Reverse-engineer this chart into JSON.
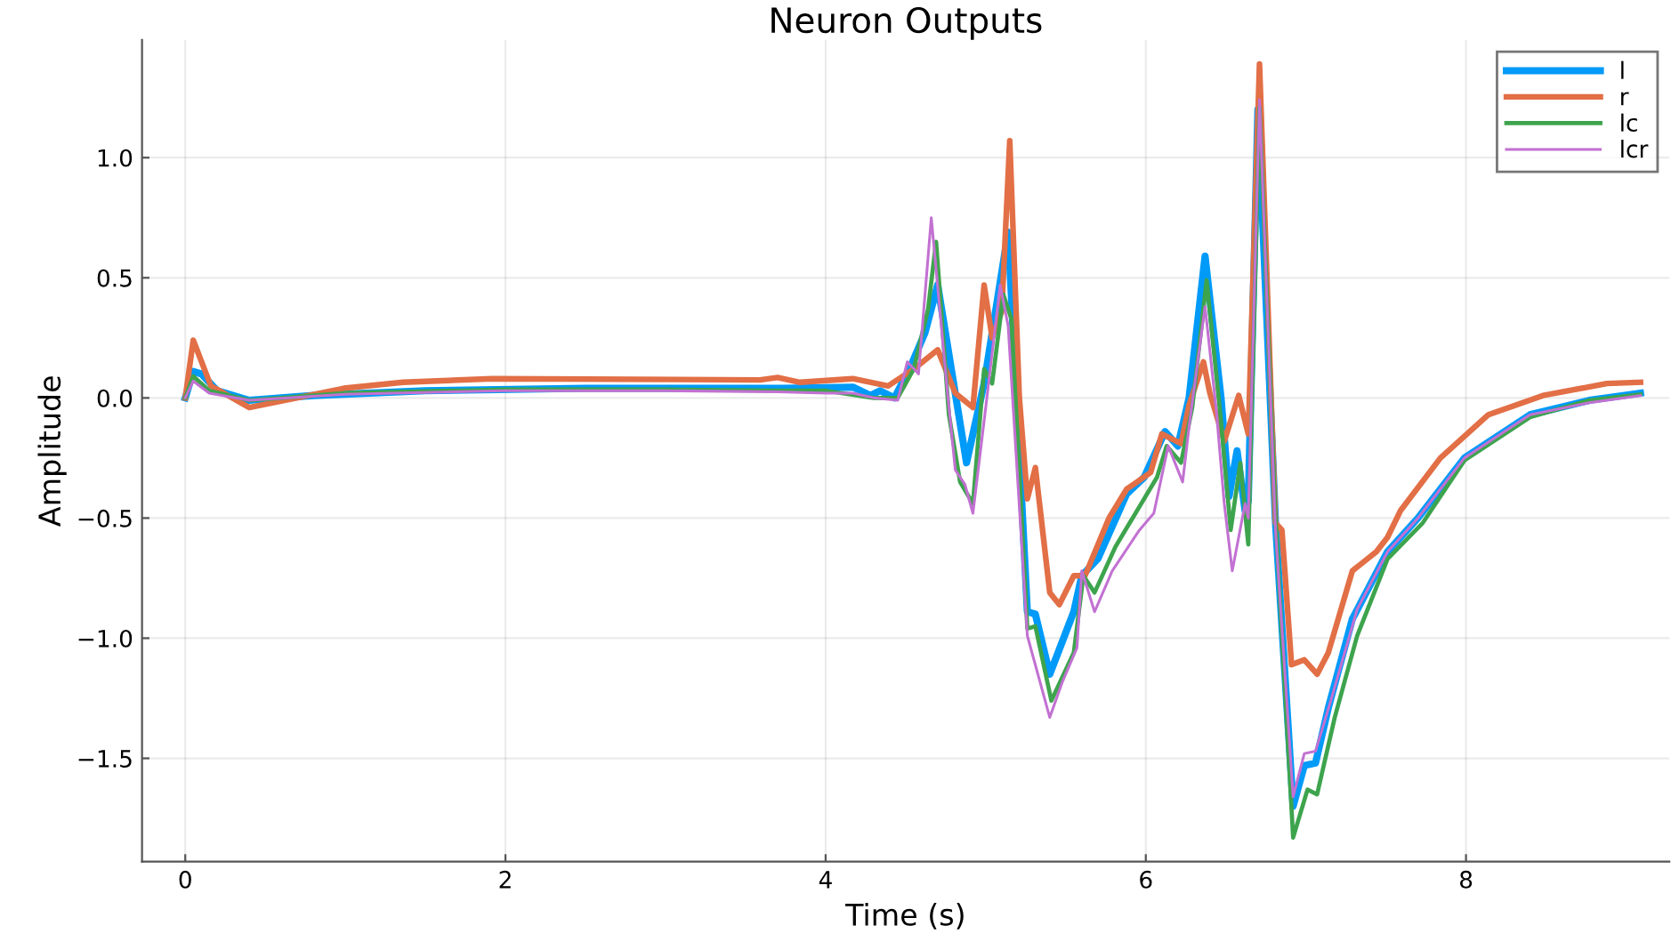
{
  "chart_data": {
    "type": "line",
    "title": "Neuron Outputs",
    "xlabel": "Time (s)",
    "ylabel": "Amplitude",
    "xlim": [
      -0.27,
      9.27
    ],
    "ylim": [
      -1.93,
      1.49
    ],
    "xticks": [
      0,
      2,
      4,
      6,
      8
    ],
    "yticks": [
      {
        "value": -1.5,
        "label": "−1.5"
      },
      {
        "value": -1.0,
        "label": "−1.0"
      },
      {
        "value": -0.5,
        "label": "−0.5"
      },
      {
        "value": 0.0,
        "label": "0.0"
      },
      {
        "value": 0.5,
        "label": "0.5"
      },
      {
        "value": 1.0,
        "label": "1.0"
      }
    ],
    "grid": true,
    "legend": "top right",
    "line_style": "solid",
    "marker": "none",
    "series": [
      {
        "name": "l",
        "color": "#009af9",
        "x": [
          0,
          0.05,
          0.1,
          0.2,
          0.4,
          0.8,
          1.5,
          2.5,
          3.5,
          3.73,
          4.17,
          4.28,
          4.34,
          4.43,
          4.53,
          4.62,
          4.7,
          4.88,
          4.99,
          5.14,
          5.26,
          5.31,
          5.4,
          5.55,
          5.6,
          5.7,
          5.88,
          5.99,
          6.12,
          6.2,
          6.27,
          6.37,
          6.47,
          6.52,
          6.57,
          6.62,
          6.64,
          6.7,
          6.81,
          6.92,
          6.99,
          7.06,
          7.14,
          7.29,
          7.51,
          7.7,
          7.99,
          8.4,
          8.77,
          9.09
        ],
        "values": [
          0,
          0.11,
          0.1,
          0.03,
          -0.01,
          0.01,
          0.03,
          0.04,
          0.04,
          0.04,
          0.045,
          0.01,
          0.03,
          0.0,
          0.13,
          0.27,
          0.47,
          -0.27,
          0.06,
          0.69,
          -0.89,
          -0.9,
          -1.15,
          -0.89,
          -0.74,
          -0.67,
          -0.4,
          -0.33,
          -0.14,
          -0.2,
          0.0,
          0.59,
          0.0,
          -0.41,
          -0.22,
          -0.47,
          -0.43,
          1.2,
          -0.52,
          -1.7,
          -1.53,
          -1.52,
          -1.29,
          -0.92,
          -0.64,
          -0.5,
          -0.25,
          -0.07,
          -0.01,
          0.02
        ]
      },
      {
        "name": "r",
        "color": "#e26f46",
        "x": [
          0,
          0.05,
          0.16,
          0.4,
          0.62,
          0.99,
          1.36,
          1.92,
          3.59,
          3.7,
          3.84,
          4.17,
          4.39,
          4.55,
          4.7,
          4.81,
          4.92,
          4.99,
          5.04,
          5.1,
          5.15,
          5.21,
          5.26,
          5.31,
          5.4,
          5.46,
          5.55,
          5.62,
          5.77,
          5.88,
          6.03,
          6.1,
          6.22,
          6.27,
          6.36,
          6.4,
          6.49,
          6.58,
          6.64,
          6.71,
          6.81,
          6.85,
          6.91,
          6.99,
          7.07,
          7.14,
          7.29,
          7.44,
          7.51,
          7.59,
          7.84,
          8.14,
          8.48,
          8.88,
          9.09
        ],
        "values": [
          0,
          0.24,
          0.05,
          -0.04,
          -0.01,
          0.04,
          0.065,
          0.08,
          0.075,
          0.085,
          0.065,
          0.08,
          0.05,
          0.12,
          0.2,
          0.02,
          -0.04,
          0.47,
          0.25,
          0.36,
          1.07,
          0.0,
          -0.42,
          -0.29,
          -0.81,
          -0.86,
          -0.74,
          -0.74,
          -0.5,
          -0.38,
          -0.31,
          -0.15,
          -0.19,
          -0.03,
          0.15,
          0.02,
          -0.18,
          0.01,
          -0.15,
          1.39,
          -0.52,
          -0.55,
          -1.11,
          -1.09,
          -1.15,
          -1.06,
          -0.72,
          -0.64,
          -0.58,
          -0.47,
          -0.25,
          -0.07,
          0.01,
          0.06,
          0.065
        ]
      },
      {
        "name": "lc",
        "color": "#3da44d",
        "x": [
          0,
          0.05,
          0.15,
          0.4,
          1.0,
          2.0,
          3.0,
          3.7,
          4.0,
          4.3,
          4.45,
          4.55,
          4.64,
          4.69,
          4.77,
          4.84,
          4.92,
          4.99,
          5.04,
          5.11,
          5.16,
          5.26,
          5.31,
          5.41,
          5.55,
          5.61,
          5.68,
          5.81,
          6.07,
          6.13,
          6.22,
          6.29,
          6.38,
          6.47,
          6.53,
          6.59,
          6.64,
          6.71,
          6.81,
          6.92,
          7.01,
          7.07,
          7.18,
          7.32,
          7.51,
          7.73,
          7.99,
          8.4,
          8.77,
          9.09
        ],
        "values": [
          0,
          0.09,
          0.03,
          -0.01,
          0.02,
          0.035,
          0.035,
          0.03,
          0.03,
          0.0,
          0.0,
          0.12,
          0.37,
          0.65,
          -0.07,
          -0.35,
          -0.44,
          0.12,
          0.06,
          0.43,
          0.33,
          -0.96,
          -0.95,
          -1.26,
          -1.06,
          -0.74,
          -0.81,
          -0.62,
          -0.33,
          -0.2,
          -0.27,
          -0.04,
          0.49,
          -0.1,
          -0.55,
          -0.27,
          -0.61,
          1.21,
          -0.5,
          -1.83,
          -1.63,
          -1.65,
          -1.33,
          -0.99,
          -0.67,
          -0.52,
          -0.26,
          -0.08,
          -0.01,
          0.015
        ]
      },
      {
        "name": "lcr",
        "color": "#c271d2",
        "x": [
          0,
          0.05,
          0.15,
          0.4,
          1.0,
          2.0,
          3.0,
          3.7,
          4.0,
          4.17,
          4.3,
          4.45,
          4.51,
          4.58,
          4.66,
          4.76,
          4.81,
          4.87,
          4.92,
          5.0,
          5.09,
          5.14,
          5.26,
          5.4,
          5.48,
          5.57,
          5.6,
          5.68,
          5.79,
          5.96,
          6.05,
          6.14,
          6.23,
          6.27,
          6.37,
          6.44,
          6.49,
          6.54,
          6.62,
          6.64,
          6.71,
          6.81,
          6.92,
          6.99,
          7.06,
          7.16,
          7.32,
          7.51,
          7.7,
          7.99,
          8.4,
          8.77,
          9.09
        ],
        "values": [
          0,
          0.07,
          0.02,
          -0.01,
          0.015,
          0.03,
          0.03,
          0.025,
          0.02,
          0.02,
          0.0,
          -0.01,
          0.15,
          0.1,
          0.75,
          0.03,
          -0.3,
          -0.36,
          -0.48,
          -0.04,
          0.47,
          0.3,
          -0.99,
          -1.33,
          -1.18,
          -1.04,
          -0.72,
          -0.89,
          -0.72,
          -0.55,
          -0.48,
          -0.2,
          -0.35,
          -0.12,
          0.38,
          -0.05,
          -0.44,
          -0.72,
          -0.44,
          -0.5,
          1.24,
          -0.55,
          -1.66,
          -1.48,
          -1.47,
          -1.25,
          -0.88,
          -0.64,
          -0.5,
          -0.25,
          -0.07,
          -0.02,
          0.01
        ]
      }
    ]
  }
}
